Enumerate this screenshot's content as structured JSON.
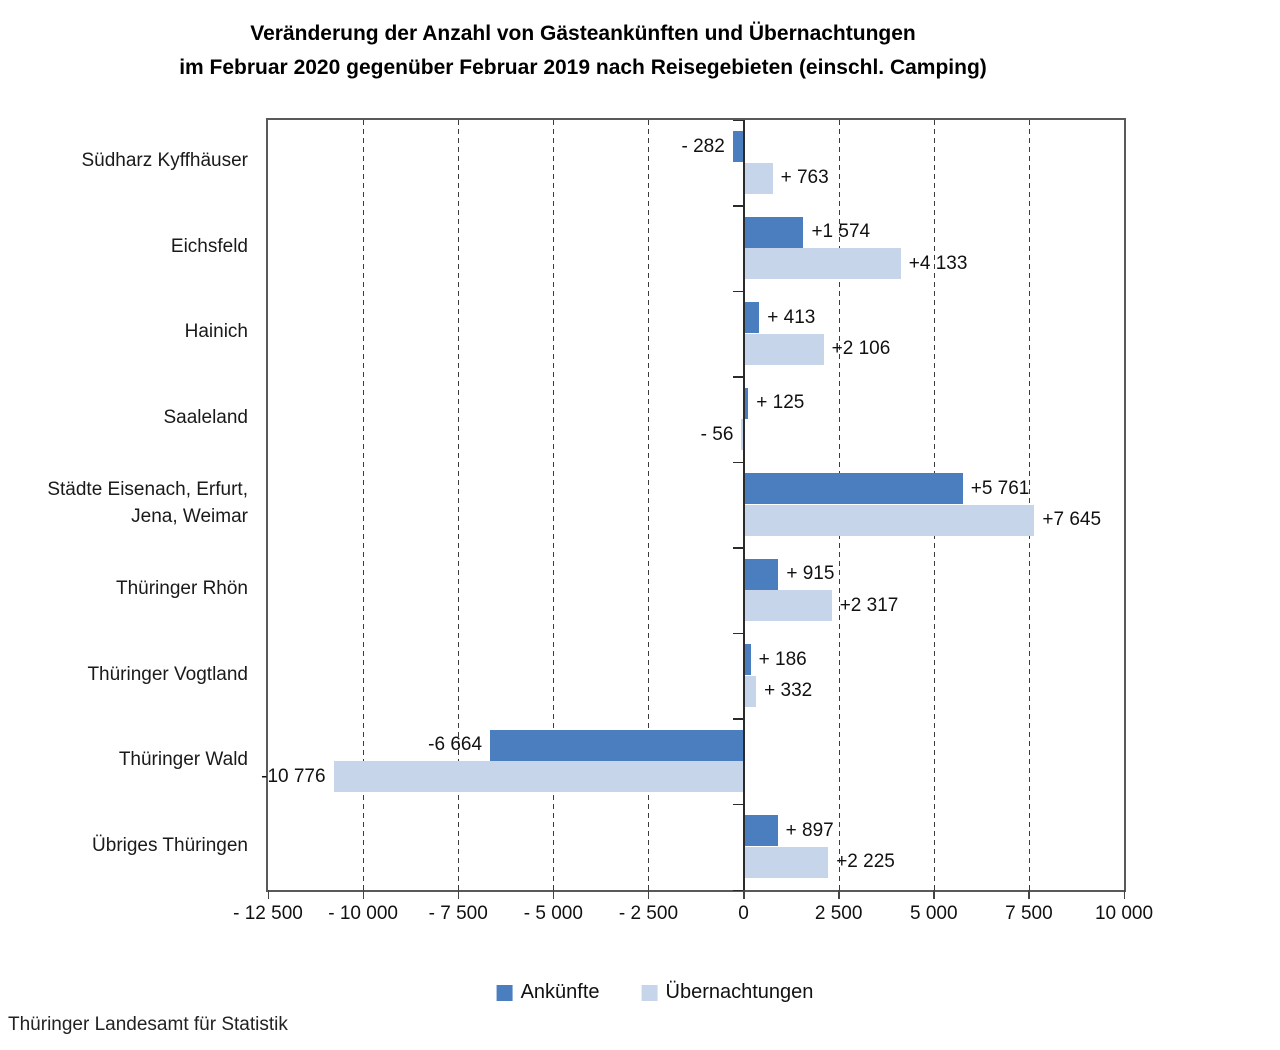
{
  "title": {
    "line1": "Veränderung der Anzahl von Gästeankünften und Übernachtungen",
    "line2": "im Februar 2020 gegenüber Februar 2019 nach Reisegebieten (einschl. Camping)"
  },
  "footer": {
    "source": "Thüringer Landesamt für Statistik"
  },
  "chart_data": {
    "type": "bar",
    "orientation": "horizontal",
    "title": "Veränderung der Anzahl von Gästeankünften und Übernachtungen im Februar 2020 gegenüber Februar 2019 nach Reisegebieten (einschl. Camping)",
    "categories": [
      "Südharz Kyffhäuser",
      "Eichsfeld",
      "Hainich",
      "Saaleland",
      "Städte Eisenach, Erfurt,\nJena, Weimar",
      "Thüringer Rhön",
      "Thüringer Vogtland",
      "Thüringer Wald",
      "Übriges Thüringen"
    ],
    "series": [
      {
        "name": "Ankünfte",
        "color": "#4b7ebe",
        "values": [
          -282,
          1574,
          413,
          125,
          5761,
          915,
          186,
          -6664,
          897
        ],
        "labels": [
          "- 282",
          "+1 574",
          "+ 413",
          "+ 125",
          "+5 761",
          "+ 915",
          "+ 186",
          "-6 664",
          "+ 897"
        ]
      },
      {
        "name": "Übernachtungen",
        "color": "#c6d5ea",
        "values": [
          763,
          4133,
          2106,
          -56,
          7645,
          2317,
          332,
          -10776,
          2225
        ],
        "labels": [
          "+ 763",
          "+4 133",
          "+2 106",
          "- 56",
          "+7 645",
          "+2 317",
          "+ 332",
          "-10 776",
          "+2 225"
        ]
      }
    ],
    "xlim": [
      -12500,
      10000
    ],
    "x_ticks": [
      {
        "value": -12500,
        "label": "- 12 500"
      },
      {
        "value": -10000,
        "label": "- 10 000"
      },
      {
        "value": -7500,
        "label": "- 7 500"
      },
      {
        "value": -5000,
        "label": "- 5 000"
      },
      {
        "value": -2500,
        "label": "- 2 500"
      },
      {
        "value": 0,
        "label": "0"
      },
      {
        "value": 2500,
        "label": "2 500"
      },
      {
        "value": 5000,
        "label": "5 000"
      },
      {
        "value": 7500,
        "label": "7 500"
      },
      {
        "value": 10000,
        "label": "10 000"
      }
    ],
    "grid": "vertical-dashed",
    "legend_position": "bottom",
    "axis_color": "#595959"
  }
}
